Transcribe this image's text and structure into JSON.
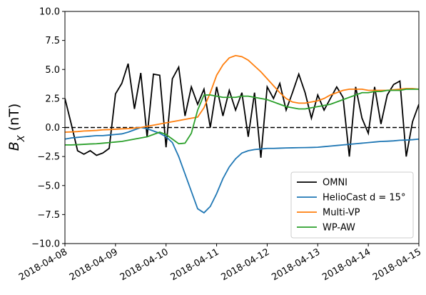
{
  "chart_data": {
    "type": "line",
    "ylabel": "B_X (nT)",
    "xlim": [
      "2018-04-08",
      "2018-04-15"
    ],
    "xticks": [
      "2018-04-08",
      "2018-04-09",
      "2018-04-10",
      "2018-04-11",
      "2018-04-12",
      "2018-04-13",
      "2018-04-14",
      "2018-04-15"
    ],
    "ylim": [
      -10,
      10
    ],
    "yticks": [
      {
        "value": -10,
        "label": "−10.0"
      },
      {
        "value": -7.5,
        "label": "−7.5"
      },
      {
        "value": -5,
        "label": "−5.0"
      },
      {
        "value": -2.5,
        "label": "−2.5"
      },
      {
        "value": 0,
        "label": "0.0"
      },
      {
        "value": 2.5,
        "label": "2.5"
      },
      {
        "value": 5,
        "label": "5.0"
      },
      {
        "value": 7.5,
        "label": "7.5"
      },
      {
        "value": 10,
        "label": "10.0"
      }
    ],
    "hline": 0,
    "legend": "lower right",
    "x": [
      "2018-04-08T00:00",
      "2018-04-08T03:00",
      "2018-04-08T06:00",
      "2018-04-08T09:00",
      "2018-04-08T12:00",
      "2018-04-08T15:00",
      "2018-04-08T18:00",
      "2018-04-08T21:00",
      "2018-04-09T00:00",
      "2018-04-09T03:00",
      "2018-04-09T06:00",
      "2018-04-09T09:00",
      "2018-04-09T12:00",
      "2018-04-09T15:00",
      "2018-04-09T18:00",
      "2018-04-09T21:00",
      "2018-04-10T00:00",
      "2018-04-10T03:00",
      "2018-04-10T06:00",
      "2018-04-10T09:00",
      "2018-04-10T12:00",
      "2018-04-10T15:00",
      "2018-04-10T18:00",
      "2018-04-10T21:00",
      "2018-04-11T00:00",
      "2018-04-11T03:00",
      "2018-04-11T06:00",
      "2018-04-11T09:00",
      "2018-04-11T12:00",
      "2018-04-11T15:00",
      "2018-04-11T18:00",
      "2018-04-11T21:00",
      "2018-04-12T00:00",
      "2018-04-12T03:00",
      "2018-04-12T06:00",
      "2018-04-12T09:00",
      "2018-04-12T12:00",
      "2018-04-12T15:00",
      "2018-04-12T18:00",
      "2018-04-12T21:00",
      "2018-04-13T00:00",
      "2018-04-13T03:00",
      "2018-04-13T06:00",
      "2018-04-13T09:00",
      "2018-04-13T12:00",
      "2018-04-13T15:00",
      "2018-04-13T18:00",
      "2018-04-13T21:00",
      "2018-04-14T00:00",
      "2018-04-14T03:00",
      "2018-04-14T06:00",
      "2018-04-14T09:00",
      "2018-04-14T12:00",
      "2018-04-14T15:00",
      "2018-04-14T18:00",
      "2018-04-14T21:00",
      "2018-04-15T00:00"
    ],
    "series": [
      {
        "name": "OMNI",
        "color": "#000000",
        "values": [
          2.5,
          0.3,
          -2.0,
          -2.3,
          -2.0,
          -2.4,
          -2.2,
          -1.8,
          2.9,
          3.8,
          5.5,
          1.6,
          4.7,
          -0.8,
          4.6,
          4.5,
          -1.7,
          4.2,
          5.2,
          1.0,
          3.5,
          2.0,
          3.3,
          0.0,
          3.5,
          1.0,
          3.2,
          1.5,
          3.0,
          -0.8,
          3.0,
          -2.6,
          3.5,
          2.5,
          3.8,
          1.5,
          3.0,
          4.6,
          3.0,
          0.8,
          2.8,
          1.5,
          2.5,
          3.5,
          2.6,
          -2.5,
          3.5,
          0.8,
          -0.5,
          3.5,
          0.3,
          2.8,
          3.7,
          4.0,
          -2.5,
          0.5,
          2.0
        ]
      },
      {
        "name": "HelioCast d = 15°",
        "color": "#1f77b4",
        "values": [
          -1.0,
          -0.9,
          -0.85,
          -0.8,
          -0.75,
          -0.7,
          -0.7,
          -0.65,
          -0.6,
          -0.55,
          -0.4,
          -0.2,
          0.0,
          -0.1,
          -0.3,
          -0.5,
          -0.8,
          -1.3,
          -2.5,
          -4.0,
          -5.5,
          -7.0,
          -7.35,
          -6.8,
          -5.7,
          -4.4,
          -3.4,
          -2.7,
          -2.2,
          -2.0,
          -1.9,
          -1.85,
          -1.8,
          -1.8,
          -1.78,
          -1.76,
          -1.75,
          -1.74,
          -1.73,
          -1.72,
          -1.7,
          -1.65,
          -1.6,
          -1.55,
          -1.5,
          -1.45,
          -1.4,
          -1.35,
          -1.3,
          -1.25,
          -1.2,
          -1.18,
          -1.15,
          -1.1,
          -1.08,
          -1.05,
          -1.0
        ]
      },
      {
        "name": "Multi-VP",
        "color": "#ff7f0e",
        "values": [
          -0.4,
          -0.38,
          -0.35,
          -0.3,
          -0.28,
          -0.25,
          -0.2,
          -0.18,
          -0.15,
          -0.12,
          -0.1,
          -0.05,
          0.0,
          0.1,
          0.2,
          0.3,
          0.4,
          0.5,
          0.6,
          0.7,
          0.8,
          0.9,
          1.7,
          3.0,
          4.5,
          5.4,
          6.0,
          6.2,
          6.1,
          5.8,
          5.3,
          4.8,
          4.2,
          3.6,
          3.0,
          2.5,
          2.2,
          2.1,
          2.1,
          2.2,
          2.3,
          2.5,
          2.8,
          3.0,
          3.2,
          3.3,
          3.3,
          3.3,
          3.2,
          3.2,
          3.2,
          3.2,
          3.25,
          3.3,
          3.35,
          3.35,
          3.3
        ]
      },
      {
        "name": "WP-AW",
        "color": "#2ca02c",
        "values": [
          -1.5,
          -1.5,
          -1.48,
          -1.45,
          -1.42,
          -1.4,
          -1.35,
          -1.3,
          -1.25,
          -1.2,
          -1.1,
          -1.0,
          -0.9,
          -0.8,
          -0.6,
          -0.4,
          -0.6,
          -1.0,
          -1.4,
          -1.35,
          -0.5,
          1.5,
          2.8,
          2.8,
          2.7,
          2.6,
          2.6,
          2.6,
          2.7,
          2.7,
          2.6,
          2.5,
          2.4,
          2.2,
          2.0,
          1.8,
          1.7,
          1.6,
          1.6,
          1.7,
          1.8,
          1.9,
          2.0,
          2.2,
          2.4,
          2.6,
          2.8,
          3.0,
          3.0,
          3.1,
          3.1,
          3.2,
          3.2,
          3.2,
          3.3,
          3.3,
          3.3
        ]
      }
    ]
  }
}
